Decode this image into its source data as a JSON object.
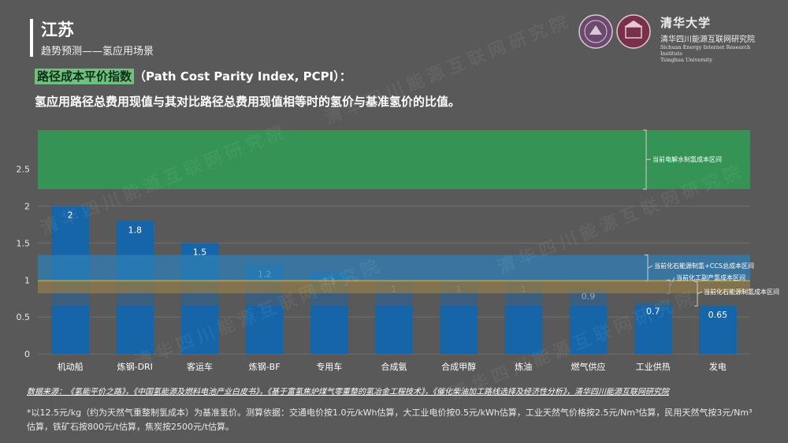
{
  "header": {
    "title": "江苏",
    "subtitle": "趋势预测——氢应用场景"
  },
  "logo": {
    "name_cn": "清华大学",
    "institute_cn": "清华四川能源互联网研究院",
    "institute_en": "Sichuan Energy Internet Research Institute",
    "university_en": "Tsinghua University"
  },
  "heading": {
    "highlight": "路径成本平价指数",
    "rest": "（Path Cost Parity Index, PCPI）："
  },
  "definition": "氢应用路径总费用现值与其对比路径总费用现值相等时的氢价与基准氢价的比值。",
  "chart_data": {
    "type": "bar",
    "categories": [
      "机动船",
      "炼钢-DRI",
      "客运车",
      "炼钢-BF",
      "专用车",
      "合成氨",
      "合成甲醇",
      "炼油",
      "燃气供应",
      "工业供热",
      "发电"
    ],
    "values": [
      2,
      1.8,
      1.5,
      1.2,
      1.1,
      1,
      1,
      1,
      0.9,
      0.7,
      0.65
    ],
    "value_labels": [
      "2",
      "1.8",
      "1.5",
      "1.2",
      "1.1",
      "1",
      "1",
      "1",
      "0.9",
      "0.7",
      "0.65"
    ],
    "ylim": [
      0,
      3.03
    ],
    "yticks": [
      0,
      0.5,
      1,
      1.5,
      2,
      2.5
    ],
    "ytick_labels": [
      "0",
      "0.5",
      "1",
      "1.5",
      "2",
      "2.5"
    ],
    "bar_color": "#1565a8",
    "bands": [
      {
        "label": "当前电解水制氢成本区间",
        "from": 2.23,
        "to": 3.03,
        "color": "#2e9e55",
        "opacity": 0.85
      },
      {
        "label": "当前化石能源制氢+CCS总成本区间",
        "from": 0.98,
        "to": 1.34,
        "color": "#2f7fb6",
        "opacity": 0.75
      },
      {
        "label": "当前化工副产氢成本区间",
        "from": 0.82,
        "to": 1.0,
        "color": "#d3a63a",
        "opacity": 0.75
      },
      {
        "label": "当前化石能源制氢成本区间",
        "from": 0.65,
        "to": 0.98,
        "color": "#5a5a5a",
        "opacity": 0.55
      }
    ]
  },
  "footer": {
    "source": "数据来源：《氢能平价之路》，《中国氢能源及燃料电池产业白皮书》，《基于富氢焦炉煤气零重整的氢冶金工程技术》，《催化柴油加工路线选择及经济性分析》，清华四川能源互联网研究院",
    "note": "*以12.5元/kg（约为天然气重整制氢成本）为基准氢价。测算依据：交通电价按1.0元/kWh估算，大工业电价按0.5元/kWh估算，工业天然气价格按2.5元/Nm³估算，民用天然气按3元/Nm³估算，铁矿石按800元/t估算，焦炭按2500元/t估算。"
  },
  "watermark": "清华四川能源互联网研究院"
}
